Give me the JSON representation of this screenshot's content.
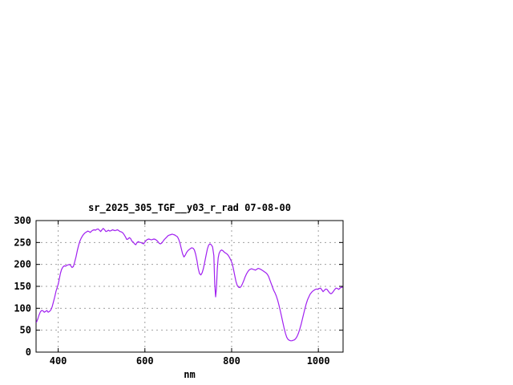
{
  "window": {
    "background": "#ffffff"
  },
  "chart_data": {
    "type": "line",
    "title": "sr_2025_305_TGF__y03_r_rad 07-08-00",
    "xlabel": "nm",
    "ylabel": "",
    "xlim": [
      349,
      1057
    ],
    "ylim": [
      0,
      300
    ],
    "xticks": [
      400,
      600,
      800,
      1000
    ],
    "yticks": [
      0,
      50,
      100,
      150,
      200,
      250,
      300
    ],
    "grid": true,
    "legend": "none",
    "line_color": "#a020f0",
    "grid_color": "#a0a0a0",
    "axis_color": "#000000",
    "series": [
      {
        "name": "sr_2025_305_TGF__y03_r_rad",
        "points": [
          [
            350,
            68
          ],
          [
            353,
            76
          ],
          [
            356,
            85
          ],
          [
            359,
            92
          ],
          [
            362,
            95
          ],
          [
            365,
            94
          ],
          [
            368,
            91
          ],
          [
            371,
            93
          ],
          [
            374,
            95
          ],
          [
            377,
            91
          ],
          [
            380,
            93
          ],
          [
            383,
            96
          ],
          [
            386,
            103
          ],
          [
            389,
            114
          ],
          [
            392,
            126
          ],
          [
            395,
            139
          ],
          [
            398,
            148
          ],
          [
            400,
            155
          ],
          [
            402,
            164
          ],
          [
            405,
            179
          ],
          [
            408,
            189
          ],
          [
            411,
            194
          ],
          [
            414,
            197
          ],
          [
            417,
            196
          ],
          [
            420,
            198
          ],
          [
            423,
            199
          ],
          [
            426,
            200
          ],
          [
            429,
            197
          ],
          [
            432,
            193
          ],
          [
            435,
            195
          ],
          [
            438,
            205
          ],
          [
            441,
            217
          ],
          [
            444,
            231
          ],
          [
            447,
            243
          ],
          [
            450,
            253
          ],
          [
            453,
            260
          ],
          [
            456,
            265
          ],
          [
            459,
            269
          ],
          [
            462,
            272
          ],
          [
            465,
            274
          ],
          [
            468,
            276
          ],
          [
            471,
            275
          ],
          [
            474,
            273
          ],
          [
            477,
            276
          ],
          [
            480,
            278
          ],
          [
            483,
            279
          ],
          [
            486,
            278
          ],
          [
            489,
            280
          ],
          [
            492,
            281
          ],
          [
            495,
            278
          ],
          [
            498,
            275
          ],
          [
            501,
            279
          ],
          [
            504,
            282
          ],
          [
            507,
            279
          ],
          [
            510,
            275
          ],
          [
            513,
            276
          ],
          [
            516,
            278
          ],
          [
            519,
            276
          ],
          [
            522,
            277
          ],
          [
            525,
            279
          ],
          [
            528,
            278
          ],
          [
            531,
            277
          ],
          [
            534,
            278
          ],
          [
            537,
            279
          ],
          [
            540,
            277
          ],
          [
            543,
            275
          ],
          [
            546,
            274
          ],
          [
            549,
            272
          ],
          [
            552,
            268
          ],
          [
            555,
            263
          ],
          [
            558,
            257
          ],
          [
            561,
            258
          ],
          [
            564,
            261
          ],
          [
            567,
            259
          ],
          [
            570,
            253
          ],
          [
            573,
            251
          ],
          [
            576,
            247
          ],
          [
            579,
            245
          ],
          [
            582,
            250
          ],
          [
            585,
            252
          ],
          [
            588,
            250
          ],
          [
            591,
            250
          ],
          [
            594,
            248
          ],
          [
            597,
            247
          ],
          [
            600,
            251
          ],
          [
            603,
            255
          ],
          [
            606,
            257
          ],
          [
            609,
            258
          ],
          [
            612,
            257
          ],
          [
            615,
            256
          ],
          [
            618,
            257
          ],
          [
            621,
            258
          ],
          [
            624,
            257
          ],
          [
            627,
            255
          ],
          [
            630,
            252
          ],
          [
            633,
            248
          ],
          [
            636,
            247
          ],
          [
            639,
            249
          ],
          [
            642,
            253
          ],
          [
            645,
            257
          ],
          [
            648,
            260
          ],
          [
            651,
            263
          ],
          [
            654,
            266
          ],
          [
            657,
            267
          ],
          [
            660,
            268
          ],
          [
            663,
            269
          ],
          [
            666,
            268
          ],
          [
            669,
            267
          ],
          [
            672,
            265
          ],
          [
            675,
            263
          ],
          [
            678,
            257
          ],
          [
            681,
            248
          ],
          [
            684,
            236
          ],
          [
            687,
            224
          ],
          [
            690,
            217
          ],
          [
            693,
            221
          ],
          [
            696,
            227
          ],
          [
            699,
            231
          ],
          [
            702,
            234
          ],
          [
            705,
            236
          ],
          [
            708,
            238
          ],
          [
            711,
            237
          ],
          [
            714,
            233
          ],
          [
            717,
            223
          ],
          [
            720,
            209
          ],
          [
            723,
            191
          ],
          [
            726,
            179
          ],
          [
            729,
            176
          ],
          [
            732,
            181
          ],
          [
            735,
            191
          ],
          [
            738,
            205
          ],
          [
            741,
            221
          ],
          [
            744,
            235
          ],
          [
            747,
            244
          ],
          [
            750,
            247
          ],
          [
            753,
            245
          ],
          [
            756,
            240
          ],
          [
            759,
            220
          ],
          [
            761,
            155
          ],
          [
            763,
            126
          ],
          [
            765,
            145
          ],
          [
            767,
            190
          ],
          [
            769,
            215
          ],
          [
            771,
            225
          ],
          [
            774,
            231
          ],
          [
            777,
            233
          ],
          [
            780,
            231
          ],
          [
            783,
            228
          ],
          [
            786,
            226
          ],
          [
            789,
            224
          ],
          [
            792,
            221
          ],
          [
            795,
            216
          ],
          [
            798,
            210
          ],
          [
            801,
            203
          ],
          [
            804,
            191
          ],
          [
            807,
            175
          ],
          [
            810,
            161
          ],
          [
            813,
            152
          ],
          [
            816,
            148
          ],
          [
            819,
            147
          ],
          [
            822,
            150
          ],
          [
            825,
            156
          ],
          [
            828,
            163
          ],
          [
            831,
            171
          ],
          [
            834,
            178
          ],
          [
            837,
            183
          ],
          [
            840,
            187
          ],
          [
            843,
            189
          ],
          [
            846,
            190
          ],
          [
            849,
            189
          ],
          [
            852,
            188
          ],
          [
            855,
            187
          ],
          [
            858,
            189
          ],
          [
            861,
            191
          ],
          [
            864,
            190
          ],
          [
            867,
            189
          ],
          [
            870,
            187
          ],
          [
            873,
            185
          ],
          [
            876,
            183
          ],
          [
            879,
            181
          ],
          [
            882,
            178
          ],
          [
            885,
            173
          ],
          [
            888,
            165
          ],
          [
            891,
            157
          ],
          [
            894,
            149
          ],
          [
            897,
            141
          ],
          [
            900,
            135
          ],
          [
            903,
            128
          ],
          [
            906,
            119
          ],
          [
            909,
            108
          ],
          [
            912,
            95
          ],
          [
            915,
            82
          ],
          [
            918,
            68
          ],
          [
            921,
            55
          ],
          [
            924,
            43
          ],
          [
            927,
            34
          ],
          [
            930,
            29
          ],
          [
            933,
            27
          ],
          [
            936,
            26
          ],
          [
            939,
            26
          ],
          [
            942,
            27
          ],
          [
            945,
            28
          ],
          [
            948,
            31
          ],
          [
            951,
            36
          ],
          [
            954,
            43
          ],
          [
            957,
            52
          ],
          [
            960,
            62
          ],
          [
            963,
            74
          ],
          [
            966,
            87
          ],
          [
            969,
            99
          ],
          [
            972,
            110
          ],
          [
            975,
            119
          ],
          [
            978,
            126
          ],
          [
            981,
            132
          ],
          [
            984,
            136
          ],
          [
            987,
            139
          ],
          [
            990,
            141
          ],
          [
            993,
            143
          ],
          [
            996,
            144
          ],
          [
            999,
            143
          ],
          [
            1002,
            145
          ],
          [
            1005,
            146
          ],
          [
            1008,
            142
          ],
          [
            1011,
            138
          ],
          [
            1014,
            141
          ],
          [
            1017,
            144
          ],
          [
            1020,
            143
          ],
          [
            1023,
            139
          ],
          [
            1026,
            135
          ],
          [
            1029,
            133
          ],
          [
            1032,
            135
          ],
          [
            1035,
            139
          ],
          [
            1038,
            143
          ],
          [
            1041,
            146
          ],
          [
            1044,
            145
          ],
          [
            1047,
            143
          ],
          [
            1050,
            146
          ],
          [
            1053,
            148
          ],
          [
            1055,
            148
          ]
        ]
      }
    ]
  }
}
